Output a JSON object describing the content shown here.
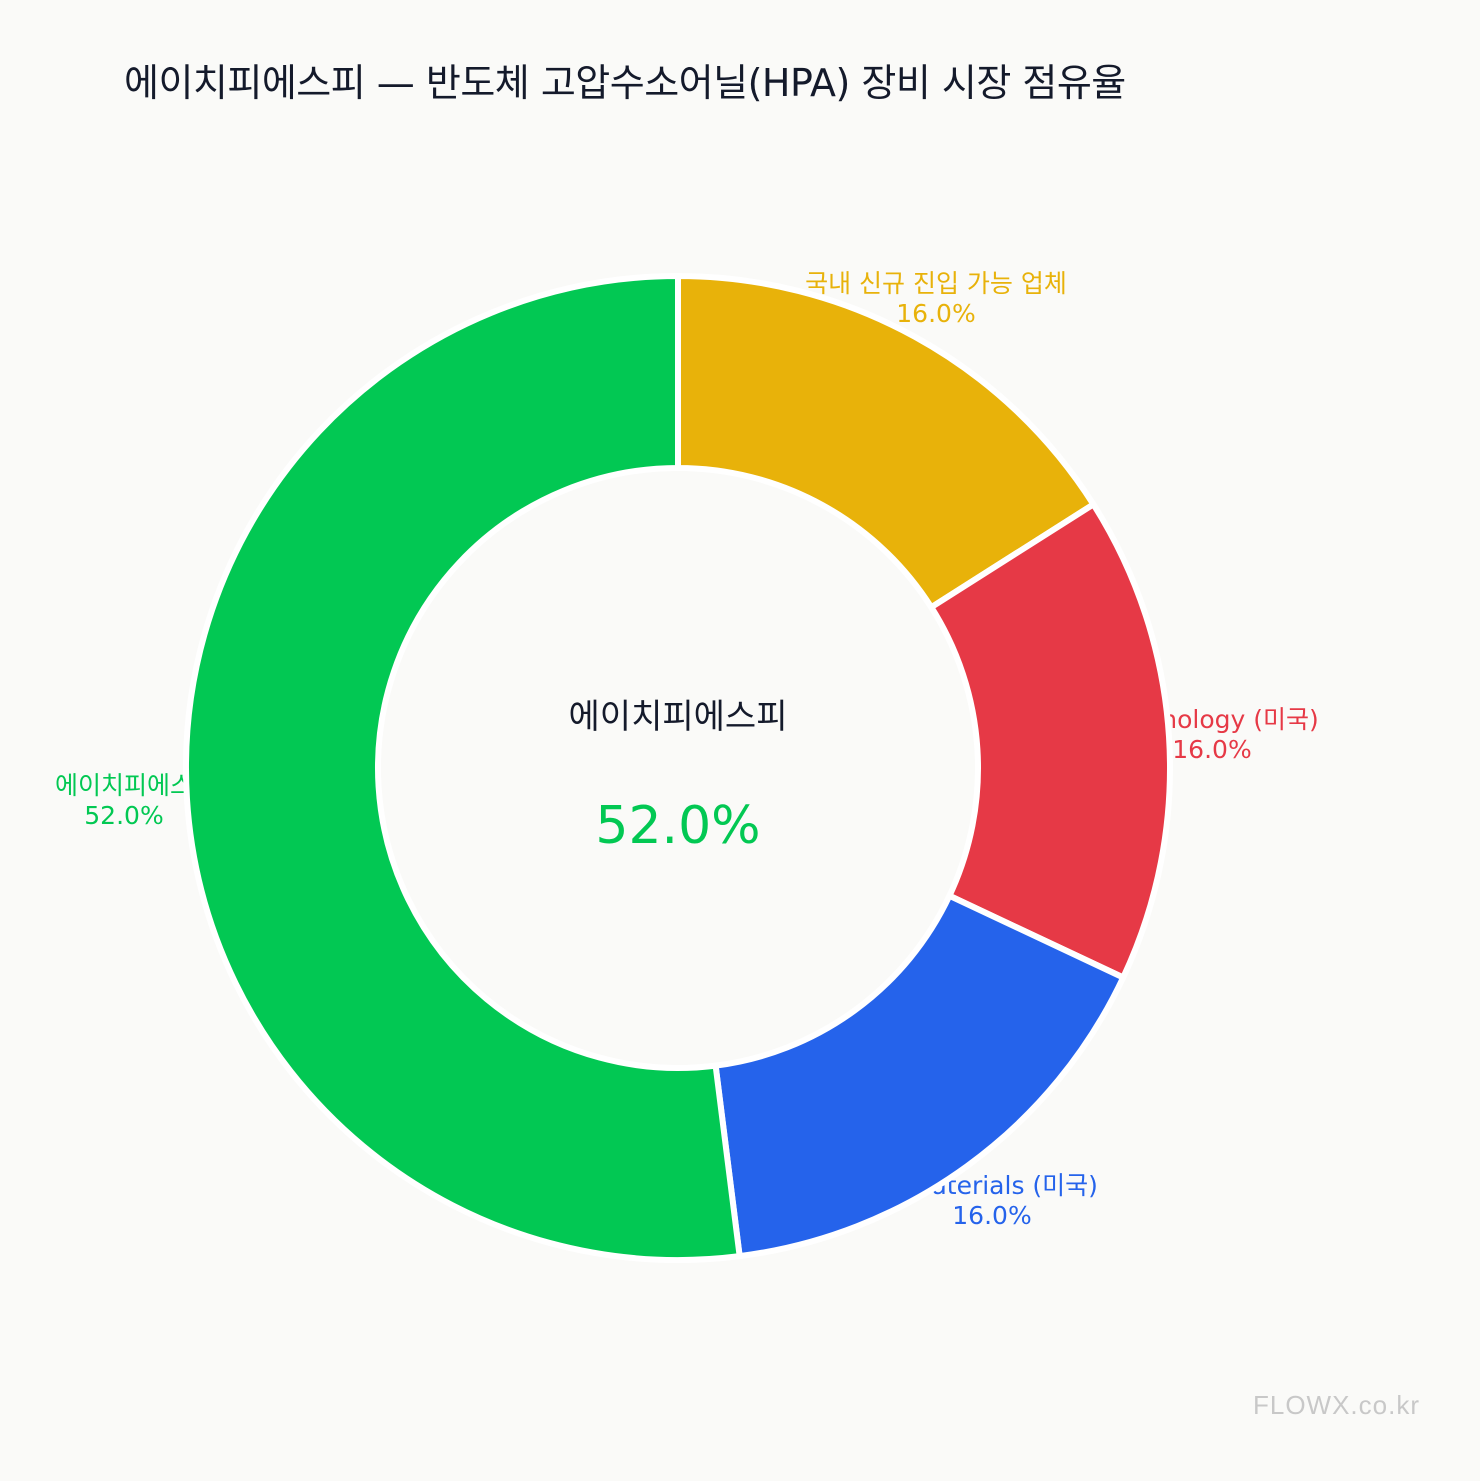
{
  "chart_data": {
    "type": "pie",
    "variant": "donut",
    "title": "에이치피에스피 — 반도체 고압수소어닐(HPA) 장비 시장 점유율",
    "slices": [
      {
        "label": "국내 신규 진입 가능 업체",
        "value": 16.0,
        "value_label": "16.0%",
        "color": "#e8b20a"
      },
      {
        "label": "Technology (미국)",
        "value": 16.0,
        "value_label": "16.0%",
        "color": "#e63946"
      },
      {
        "label": "d Materials (미국)",
        "value": 16.0,
        "value_label": "16.0%",
        "color": "#2563eb"
      },
      {
        "label": "에이치피에스",
        "value": 52.0,
        "value_label": "52.0%",
        "color": "#02c853"
      }
    ],
    "center": {
      "label": "에이치피에스피",
      "value_label": "52.0%",
      "value_color": "#02c853"
    },
    "legend": "none"
  },
  "watermark": "FLOWX.co.kr"
}
